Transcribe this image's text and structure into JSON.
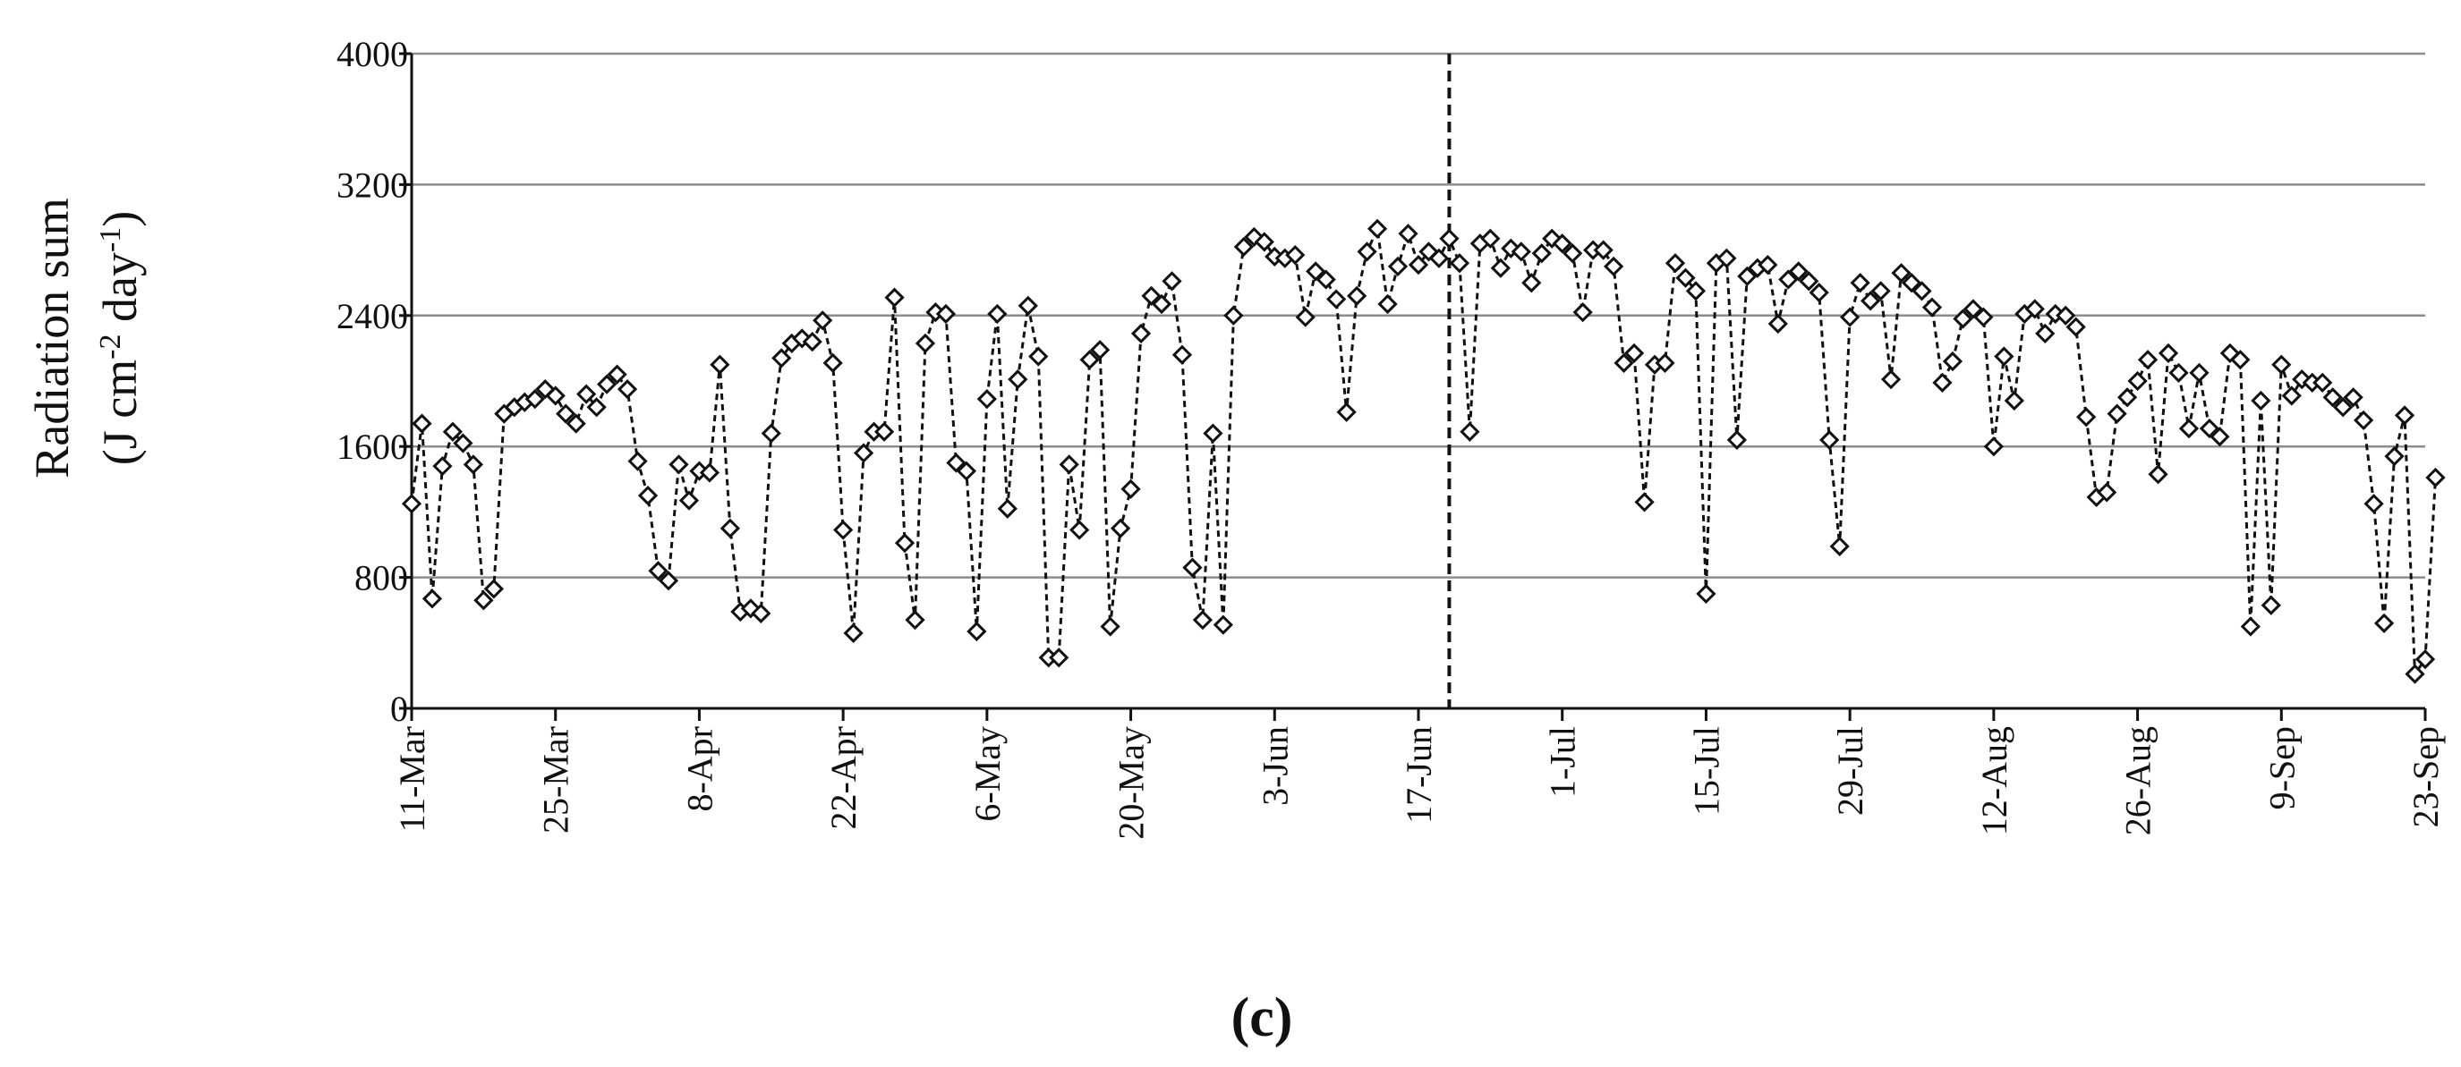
{
  "chart_data": {
    "type": "line",
    "title": "",
    "ylabel_line1": "Radiation sum",
    "ylabel_line2_parts": [
      "(J cm",
      "-2",
      " day",
      "-1",
      ")"
    ],
    "panel_label": "(c)",
    "ylim": [
      0,
      4000
    ],
    "yticks": [
      0,
      800,
      1600,
      2400,
      3200,
      4000
    ],
    "grid": "horizontal",
    "legend": "none",
    "x_start": "11-Mar",
    "x_end": "23-Sep",
    "x_tick_labels": [
      "11-Mar",
      "25-Mar",
      "8-Apr",
      "22-Apr",
      "6-May",
      "20-May",
      "3-Jun",
      "17-Jun",
      "1-Jul",
      "15-Jul",
      "29-Jul",
      "12-Aug",
      "26-Aug",
      "9-Sep",
      "23-Sep"
    ],
    "vertical_marker_date": "20-Jun",
    "marker": "open-diamond",
    "line_style": "dashed",
    "colors": {
      "line": "#111111",
      "grid": "#8c8c8c",
      "axis": "#111111",
      "marker_fill": "#ffffff"
    },
    "series": [
      {
        "values": [
          1250,
          1740,
          670,
          1480,
          1690,
          1620,
          1490,
          660,
          730,
          1800,
          1840,
          1870,
          1890,
          1950,
          1910,
          1800,
          1740,
          1920,
          1840,
          1980,
          2040,
          1950,
          1510,
          1300,
          840,
          780,
          1490,
          1270,
          1450,
          1440,
          2100,
          1100,
          590,
          610,
          580,
          1680,
          2140,
          2230,
          2260,
          2240,
          2370,
          2110,
          1090,
          460,
          1560,
          1690,
          1690,
          2510,
          1010,
          540,
          2230,
          2420,
          2410,
          1500,
          1450,
          470,
          1890,
          2410,
          1220,
          2010,
          2460,
          2150,
          310,
          310,
          1490,
          1090,
          2130,
          2190,
          500,
          1100,
          1340,
          2290,
          2520,
          2470,
          2610,
          2160,
          860,
          540,
          1680,
          510,
          2400,
          2820,
          2880,
          2850,
          2760,
          2750,
          2770,
          2390,
          2670,
          2620,
          2500,
          1810,
          2520,
          2790,
          2930,
          2470,
          2700,
          2900,
          2710,
          2790,
          2750,
          2870,
          2720,
          1690,
          2840,
          2870,
          2690,
          2810,
          2790,
          2600,
          2780,
          2870,
          2840,
          2780,
          2420,
          2800,
          2800,
          2700,
          2110,
          2170,
          1260,
          2100,
          2110,
          2720,
          2630,
          2550,
          700,
          2720,
          2750,
          1640,
          2640,
          2690,
          2710,
          2350,
          2620,
          2670,
          2610,
          2540,
          1640,
          990,
          2390,
          2600,
          2490,
          2550,
          2010,
          2660,
          2600,
          2550,
          2450,
          1990,
          2120,
          2380,
          2440,
          2390,
          1600,
          2150,
          1880,
          2410,
          2440,
          2290,
          2410,
          2400,
          2330,
          1780,
          1290,
          1320,
          1800,
          1900,
          2000,
          2130,
          1430,
          2170,
          2050,
          1710,
          2050,
          1710,
          1660,
          2170,
          2130,
          500,
          1880,
          630,
          2100,
          1910,
          2010,
          1990,
          1990,
          1900,
          1840,
          1900,
          1760,
          1250,
          520,
          1540,
          1790,
          210,
          300,
          1410
        ]
      }
    ]
  }
}
